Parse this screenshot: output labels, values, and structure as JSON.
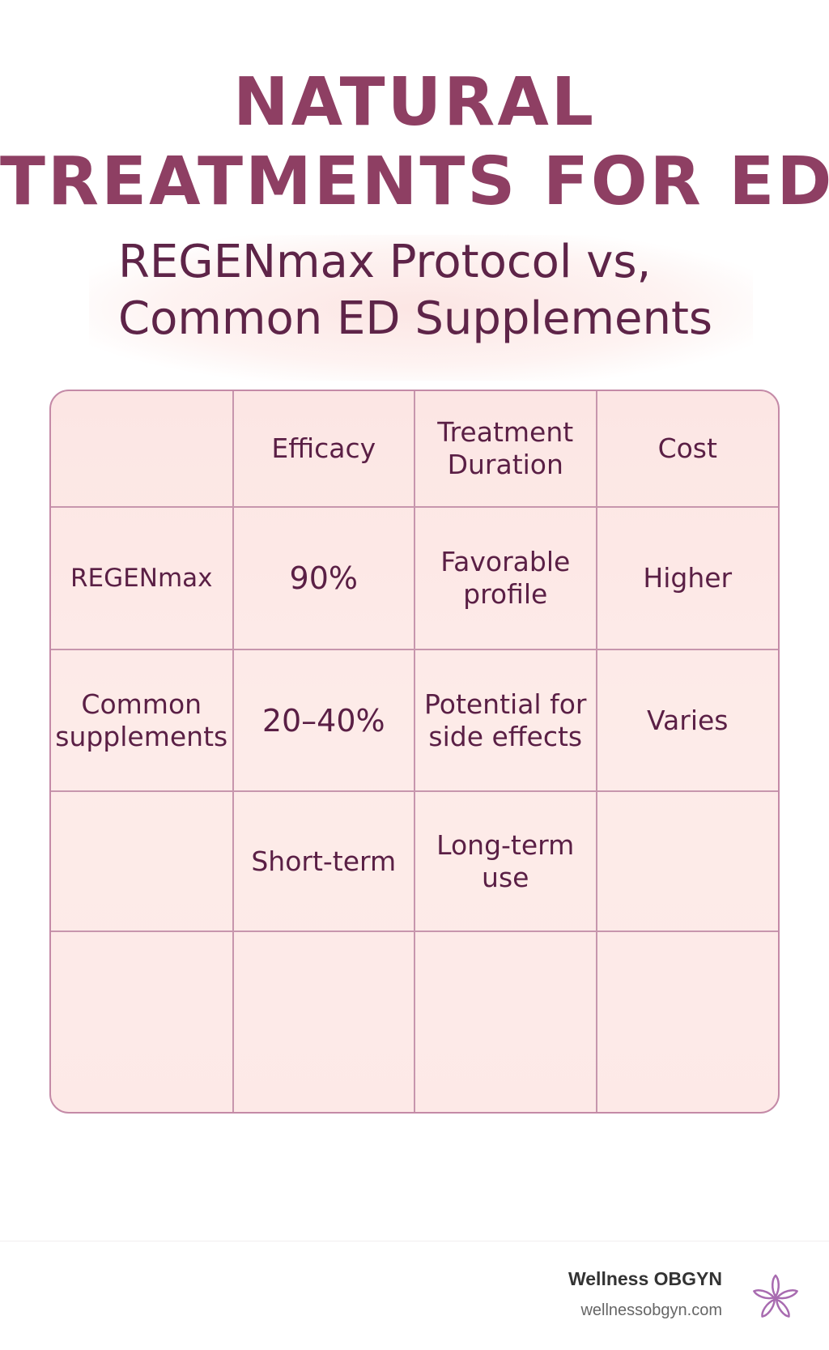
{
  "title": {
    "line1": "NATURAL",
    "line2": "TREATMENTS FOR ED"
  },
  "subtitle": {
    "line1": "REGENmax Protocol vs,",
    "line2": "Common ED Supplements"
  },
  "table": {
    "header": [
      "",
      "Efficacy",
      "Treatment Duration",
      "Cost"
    ],
    "rows": [
      [
        "REGENmax",
        "90%",
        "Favorable profile",
        "Higher"
      ],
      [
        "Common supplements",
        "20–40%",
        "Potential for side effects",
        "Varies"
      ],
      [
        "",
        "Short-term",
        "Long-term use",
        ""
      ],
      [
        "",
        "",
        "",
        ""
      ]
    ]
  },
  "footer": {
    "brand_name": "Wellness OBGYN",
    "brand_url": "wellnessobgyn.com",
    "logo_icon": "flower-logo-icon",
    "logo_color": "#a86bb0"
  },
  "colors": {
    "title": "#8e3f63",
    "subtitle": "#5e2448",
    "table_text": "#5a1f45",
    "table_bg": "#fbe2df",
    "table_border": "#c796ad"
  }
}
